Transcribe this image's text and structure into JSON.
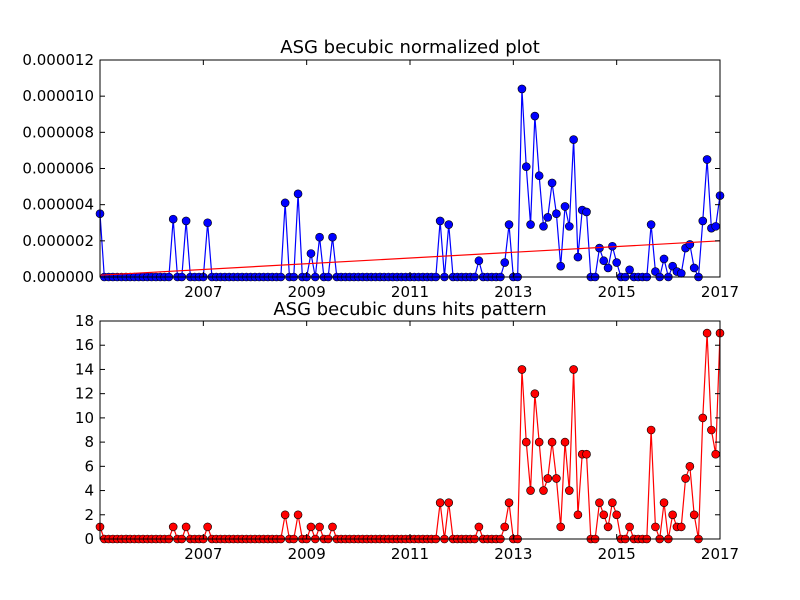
{
  "chart_data": [
    {
      "type": "line",
      "title": "ASG becubic normalized plot",
      "xlabel": "",
      "ylabel": "",
      "xlim": [
        2005.0,
        2017.0
      ],
      "ylim": [
        0,
        1.2e-05
      ],
      "x_ticks": [
        2007,
        2009,
        2011,
        2013,
        2015,
        2017
      ],
      "y_ticks": [
        "0.000000",
        "0.000002",
        "0.000004",
        "0.000006",
        "0.000008",
        "0.000010",
        "0.000012"
      ],
      "y_tick_values": [
        0,
        2e-06,
        4e-06,
        6e-06,
        8e-06,
        1e-05,
        1.2e-05
      ],
      "grid": false,
      "colors": {
        "series": "#0000ff",
        "trend": "#ff0000"
      },
      "series": [
        {
          "values": [
            [
              2005.0,
              3.5e-06
            ],
            [
              2006.42,
              3.2e-06
            ],
            [
              2006.67,
              3.1e-06
            ],
            [
              2007.08,
              3e-06
            ],
            [
              2008.58,
              4.1e-06
            ],
            [
              2008.83,
              4.6e-06
            ],
            [
              2009.08,
              1.3e-06
            ],
            [
              2009.25,
              2.2e-06
            ],
            [
              2009.5,
              2.2e-06
            ],
            [
              2011.58,
              3.1e-06
            ],
            [
              2011.75,
              2.9e-06
            ],
            [
              2012.33,
              9e-07
            ],
            [
              2012.83,
              8e-07
            ],
            [
              2012.92,
              2.9e-06
            ],
            [
              2013.17,
              1.04e-05
            ],
            [
              2013.25,
              6.1e-06
            ],
            [
              2013.33,
              2.9e-06
            ],
            [
              2013.42,
              8.9e-06
            ],
            [
              2013.5,
              5.6e-06
            ],
            [
              2013.58,
              2.8e-06
            ],
            [
              2013.67,
              3.3e-06
            ],
            [
              2013.75,
              5.2e-06
            ],
            [
              2013.83,
              3.5e-06
            ],
            [
              2013.92,
              6e-07
            ],
            [
              2014.0,
              3.9e-06
            ],
            [
              2014.08,
              2.8e-06
            ],
            [
              2014.17,
              7.6e-06
            ],
            [
              2014.25,
              1.1e-06
            ],
            [
              2014.33,
              3.7e-06
            ],
            [
              2014.42,
              3.6e-06
            ],
            [
              2014.67,
              1.6e-06
            ],
            [
              2014.75,
              9e-07
            ],
            [
              2014.83,
              5e-07
            ],
            [
              2014.92,
              1.7e-06
            ],
            [
              2015.0,
              8e-07
            ],
            [
              2015.25,
              4e-07
            ],
            [
              2015.67,
              2.9e-06
            ],
            [
              2015.75,
              3e-07
            ],
            [
              2015.92,
              1e-06
            ],
            [
              2016.08,
              6e-07
            ],
            [
              2016.17,
              3e-07
            ],
            [
              2016.25,
              2e-07
            ],
            [
              2016.33,
              1.6e-06
            ],
            [
              2016.42,
              1.8e-06
            ],
            [
              2016.5,
              5e-07
            ],
            [
              2016.67,
              3.1e-06
            ],
            [
              2016.75,
              6.5e-06
            ],
            [
              2016.83,
              2.7e-06
            ],
            [
              2016.92,
              2.8e-06
            ],
            [
              2017.0,
              4.5e-06
            ]
          ]
        },
        {
          "type": "trend-line",
          "values": [
            [
              2005.0,
              1e-07
            ],
            [
              2017.0,
              2e-06
            ]
          ]
        }
      ]
    },
    {
      "type": "line",
      "title": "ASG becubic duns hits pattern",
      "xlabel": "",
      "ylabel": "",
      "xlim": [
        2005.0,
        2017.0
      ],
      "ylim": [
        0,
        18
      ],
      "x_ticks": [
        2007,
        2009,
        2011,
        2013,
        2015,
        2017
      ],
      "y_ticks": [
        0,
        2,
        4,
        6,
        8,
        10,
        12,
        14,
        16,
        18
      ],
      "grid": false,
      "colors": {
        "series": "#ff0000"
      },
      "series": [
        {
          "values": [
            [
              2005.0,
              1
            ],
            [
              2006.42,
              1
            ],
            [
              2006.67,
              1
            ],
            [
              2007.08,
              1
            ],
            [
              2008.58,
              2
            ],
            [
              2008.83,
              2
            ],
            [
              2009.08,
              1
            ],
            [
              2009.25,
              1
            ],
            [
              2009.5,
              1
            ],
            [
              2011.58,
              3
            ],
            [
              2011.75,
              3
            ],
            [
              2012.33,
              1
            ],
            [
              2012.83,
              1
            ],
            [
              2012.92,
              3
            ],
            [
              2013.17,
              14
            ],
            [
              2013.25,
              8
            ],
            [
              2013.33,
              4
            ],
            [
              2013.42,
              12
            ],
            [
              2013.5,
              8
            ],
            [
              2013.58,
              4
            ],
            [
              2013.67,
              5
            ],
            [
              2013.75,
              8
            ],
            [
              2013.83,
              5
            ],
            [
              2013.92,
              1
            ],
            [
              2014.0,
              8
            ],
            [
              2014.08,
              4
            ],
            [
              2014.17,
              14
            ],
            [
              2014.25,
              2
            ],
            [
              2014.33,
              7
            ],
            [
              2014.42,
              7
            ],
            [
              2014.67,
              3
            ],
            [
              2014.75,
              2
            ],
            [
              2014.83,
              1
            ],
            [
              2014.92,
              3
            ],
            [
              2015.0,
              2
            ],
            [
              2015.25,
              1
            ],
            [
              2015.67,
              9
            ],
            [
              2015.75,
              1
            ],
            [
              2015.92,
              3
            ],
            [
              2016.08,
              2
            ],
            [
              2016.17,
              1
            ],
            [
              2016.25,
              1
            ],
            [
              2016.33,
              5
            ],
            [
              2016.42,
              6
            ],
            [
              2016.5,
              2
            ],
            [
              2016.67,
              10
            ],
            [
              2016.75,
              17
            ],
            [
              2016.83,
              9
            ],
            [
              2016.92,
              7
            ],
            [
              2017.0,
              17
            ]
          ]
        }
      ]
    }
  ]
}
